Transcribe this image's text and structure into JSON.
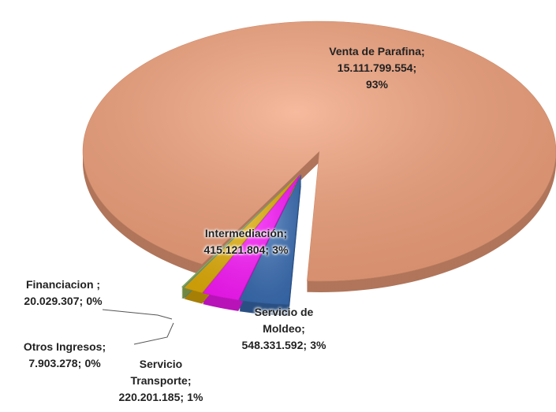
{
  "chart_data": {
    "type": "pie3d",
    "categories": [
      "Venta de Parafina;",
      "Servicio de Moldeo;",
      "Intermediación;",
      "Servicio Transporte;",
      "Otros Ingresos;",
      "Financiacion ;"
    ],
    "values": [
      15111799554,
      548331592,
      415121804,
      220201185,
      7903278,
      20029307
    ],
    "value_labels": [
      "15.111.799.554;",
      "548.331.592;",
      "415.121.804;",
      "220.201.185;",
      "7.903.278;",
      "20.029.307;"
    ],
    "percent_labels": [
      "93%",
      "3%",
      "3%",
      "1%",
      "0%",
      "0%"
    ],
    "colors": [
      "#f4a37d",
      "#3b6fb6",
      "#ff1aff",
      "#e6b10a",
      "#4bacc6",
      "#9bbb59"
    ]
  }
}
